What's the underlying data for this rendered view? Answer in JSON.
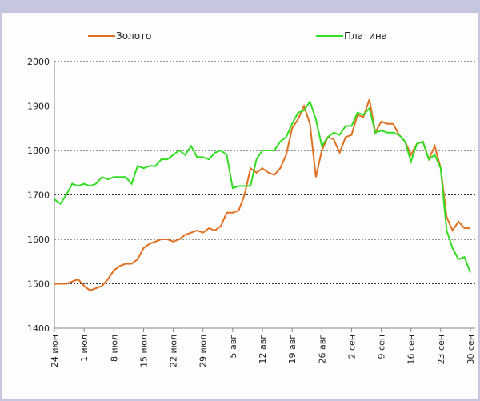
{
  "chart_data": {
    "type": "line",
    "categories": [
      "24 июн",
      null,
      null,
      null,
      null,
      "1 июл",
      null,
      null,
      null,
      null,
      "8 июл",
      null,
      null,
      null,
      null,
      "15 июл",
      null,
      null,
      null,
      null,
      "22 июл",
      null,
      null,
      null,
      null,
      "29 июл",
      null,
      null,
      null,
      null,
      "5 авг",
      null,
      null,
      null,
      null,
      "12 авг",
      null,
      null,
      null,
      null,
      "19 авг",
      null,
      null,
      null,
      null,
      "26 авг",
      null,
      null,
      null,
      null,
      "2 сен",
      null,
      null,
      null,
      null,
      "9 сен",
      null,
      null,
      null,
      null,
      "16 сен",
      null,
      null,
      null,
      null,
      "23 сен",
      null,
      null,
      null,
      null,
      "30 сен"
    ],
    "series": [
      {
        "name": "Золото",
        "color": "#e07020",
        "values": [
          1500,
          1500,
          1500,
          1505,
          1510,
          1495,
          1485,
          1490,
          1495,
          1510,
          1530,
          1540,
          1545,
          1545,
          1555,
          1580,
          1590,
          1595,
          1600,
          1600,
          1595,
          1600,
          1610,
          1615,
          1620,
          1615,
          1625,
          1620,
          1630,
          1660,
          1660,
          1665,
          1700,
          1760,
          1750,
          1760,
          1750,
          1745,
          1760,
          1790,
          1850,
          1870,
          1900,
          1860,
          1740,
          1800,
          1830,
          1825,
          1795,
          1830,
          1835,
          1880,
          1875,
          1915,
          1840,
          1865,
          1860,
          1860,
          1835,
          1820,
          1790,
          1815,
          1820,
          1780,
          1810,
          1760,
          1650,
          1620,
          1640,
          1625,
          1625
        ]
      },
      {
        "name": "Платина",
        "color": "#33dd22",
        "values": [
          1690,
          1680,
          1700,
          1725,
          1720,
          1725,
          1720,
          1725,
          1740,
          1735,
          1740,
          1740,
          1740,
          1725,
          1765,
          1760,
          1765,
          1765,
          1780,
          1780,
          1790,
          1800,
          1790,
          1810,
          1785,
          1785,
          1780,
          1795,
          1800,
          1790,
          1715,
          1720,
          1720,
          1720,
          1780,
          1800,
          1800,
          1800,
          1820,
          1830,
          1860,
          1885,
          1890,
          1910,
          1870,
          1810,
          1830,
          1840,
          1835,
          1855,
          1855,
          1885,
          1880,
          1895,
          1840,
          1845,
          1840,
          1840,
          1835,
          1820,
          1775,
          1815,
          1820,
          1780,
          1790,
          1760,
          1620,
          1580,
          1555,
          1560,
          1525
        ]
      }
    ],
    "ylim": [
      1400,
      2000
    ],
    "yticks": [
      1400,
      1500,
      1600,
      1700,
      1800,
      1900,
      2000
    ],
    "grid": true
  }
}
